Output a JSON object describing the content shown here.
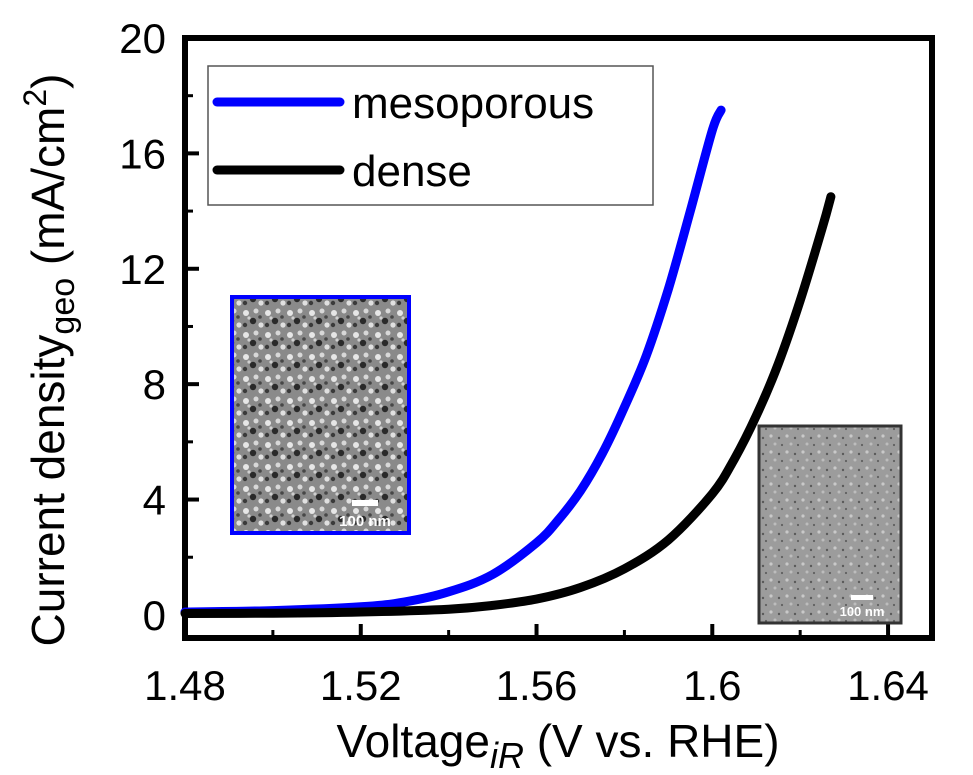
{
  "chart_data": {
    "type": "line",
    "xlabel": "Voltage",
    "xlabel_sub": "iR",
    "xlabel_units": " (V vs. RHE)",
    "ylabel": "Current density",
    "ylabel_sub": "geo",
    "ylabel_units": " (mA/cm",
    "ylabel_sup": "2",
    "ylabel_close": ")",
    "xlim": [
      1.48,
      1.65
    ],
    "ylim": [
      -0.8,
      20
    ],
    "x_ticks": [
      1.48,
      1.52,
      1.56,
      1.6,
      1.64
    ],
    "x_tick_labels": [
      "1.48",
      "1.52",
      "1.56",
      "1.6",
      "1.64"
    ],
    "y_ticks": [
      0,
      4,
      8,
      12,
      16,
      20
    ],
    "y_tick_labels": [
      "0",
      "4",
      "8",
      "12",
      "16",
      "20"
    ],
    "legend_position": "top-left",
    "series": [
      {
        "name": "mesoporous",
        "color": "#0000ff",
        "x": [
          1.48,
          1.5,
          1.52,
          1.53,
          1.54,
          1.55,
          1.56,
          1.565,
          1.57,
          1.575,
          1.58,
          1.585,
          1.59,
          1.595,
          1.6,
          1.602
        ],
        "y": [
          0.1,
          0.15,
          0.28,
          0.45,
          0.8,
          1.4,
          2.5,
          3.3,
          4.3,
          5.6,
          7.2,
          9.0,
          11.3,
          14.0,
          16.8,
          17.5
        ]
      },
      {
        "name": "dense",
        "color": "#000000",
        "x": [
          1.48,
          1.5,
          1.52,
          1.54,
          1.55,
          1.56,
          1.57,
          1.58,
          1.59,
          1.6,
          1.605,
          1.61,
          1.615,
          1.62,
          1.625,
          1.627
        ],
        "y": [
          0.05,
          0.06,
          0.1,
          0.2,
          0.33,
          0.55,
          0.95,
          1.6,
          2.6,
          4.2,
          5.4,
          6.9,
          8.7,
          10.9,
          13.4,
          14.5
        ]
      }
    ],
    "insets": [
      {
        "label": "100 nm",
        "border": "#0000ff"
      },
      {
        "label": "100 nm",
        "border": "#333333"
      }
    ]
  }
}
